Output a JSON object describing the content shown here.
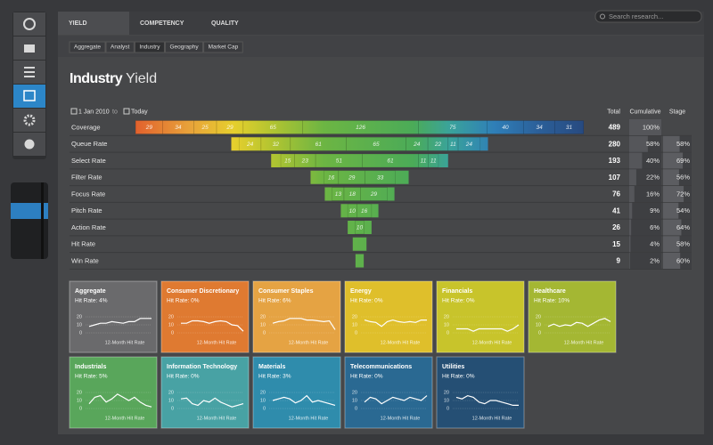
{
  "nav": {
    "tabs": [
      "YIELD",
      "COMPETENCY",
      "QUALITY"
    ],
    "active_tab": 0,
    "subtabs": [
      "Aggregate",
      "Analyst",
      "Industry",
      "Geography",
      "Market Cap"
    ],
    "active_subtab": 2,
    "search_placeholder": "Search research..."
  },
  "title": {
    "bold": "Industry",
    "light": "Yield"
  },
  "dates": {
    "from": "1 Jan 2010",
    "to_word": "to",
    "to": "Today"
  },
  "columns": [
    "Total",
    "Cumulative",
    "Stage"
  ],
  "funnel_rows": [
    {
      "label": "Coverage",
      "segments": [
        29,
        34,
        25,
        29,
        65,
        126,
        75,
        40,
        34,
        31
      ],
      "total": 489,
      "cumulative": {
        "value": 100,
        "label": "100%"
      },
      "stage": null
    },
    {
      "label": "Queue Rate",
      "segments": [
        24,
        32,
        61,
        65,
        24,
        22,
        11,
        24
      ],
      "total": 280,
      "cumulative": {
        "value": 58,
        "label": "58%"
      },
      "stage": {
        "value": 58,
        "label": "58%"
      }
    },
    {
      "label": "Select Rate",
      "segments": [
        15,
        23,
        51,
        61,
        11,
        11
      ],
      "total": 193,
      "cumulative": {
        "value": 40,
        "label": "40%"
      },
      "stage": {
        "value": 69,
        "label": "69%"
      }
    },
    {
      "label": "Filter Rate",
      "segments": [
        16,
        29,
        33
      ],
      "total": 107,
      "cumulative": {
        "value": 22,
        "label": "22%"
      },
      "stage": {
        "value": 56,
        "label": "56%"
      }
    },
    {
      "label": "Focus Rate",
      "segments": [
        13,
        18,
        29
      ],
      "total": 76,
      "cumulative": {
        "value": 16,
        "label": "16%"
      },
      "stage": {
        "value": 72,
        "label": "72%"
      }
    },
    {
      "label": "Pitch Rate",
      "segments": [
        10,
        16
      ],
      "total": 41,
      "cumulative": {
        "value": 9,
        "label": "9%"
      },
      "stage": {
        "value": 54,
        "label": "54%"
      }
    },
    {
      "label": "Action Rate",
      "segments": [
        10
      ],
      "total": 26,
      "cumulative": {
        "value": 6,
        "label": "6%"
      },
      "stage": {
        "value": 64,
        "label": "64%"
      }
    },
    {
      "label": "Hit Rate",
      "segments": [],
      "total": 15,
      "cumulative": {
        "value": 4,
        "label": "4%"
      },
      "stage": {
        "value": 58,
        "label": "58%"
      }
    },
    {
      "label": "Win Rate",
      "segments": [],
      "total": 9,
      "cumulative": {
        "value": 2,
        "label": "2%"
      },
      "stage": {
        "value": 60,
        "label": "60%"
      }
    }
  ],
  "spark_ylim": [
    0,
    20
  ],
  "spark_yticks": [
    20,
    10,
    0
  ],
  "spark_caption": "12-Month Hit Rate",
  "tiles": [
    {
      "name": "Aggregate",
      "hit_rate": "Hit Rate: 4%",
      "color": "#6a6a6c",
      "values": [
        8,
        10,
        12,
        12,
        14,
        13,
        12,
        14,
        14,
        18,
        18,
        18
      ]
    },
    {
      "name": "Consumer Discretionary",
      "hit_rate": "Hit Rate: 0%",
      "color": "#df7a31",
      "values": [
        12,
        12,
        15,
        15,
        14,
        12,
        14,
        15,
        14,
        10,
        9,
        2
      ]
    },
    {
      "name": "Consumer Staples",
      "hit_rate": "Hit Rate: 6%",
      "color": "#e5a343",
      "values": [
        12,
        14,
        15,
        18,
        18,
        18,
        16,
        16,
        15,
        14,
        15,
        4
      ]
    },
    {
      "name": "Energy",
      "hit_rate": "Hit Rate: 0%",
      "color": "#dfbf2b",
      "values": [
        16,
        14,
        13,
        8,
        14,
        16,
        14,
        13,
        14,
        13,
        16,
        16
      ]
    },
    {
      "name": "Financials",
      "hit_rate": "Hit Rate: 0%",
      "color": "#c8c42b",
      "values": [
        5,
        5,
        5,
        2,
        5,
        5,
        5,
        5,
        5,
        2,
        5,
        10
      ]
    },
    {
      "name": "Healthcare",
      "hit_rate": "Hit Rate: 10%",
      "color": "#a4b733",
      "values": [
        8,
        11,
        8,
        10,
        9,
        13,
        12,
        8,
        12,
        16,
        18,
        14
      ]
    },
    {
      "name": "Industrials",
      "hit_rate": "Hit Rate: 5%",
      "color": "#59a65b",
      "values": [
        6,
        14,
        16,
        8,
        12,
        18,
        14,
        10,
        14,
        8,
        4,
        2
      ]
    },
    {
      "name": "Information Technology",
      "hit_rate": "Hit Rate: 0%",
      "color": "#48a2a4",
      "values": [
        12,
        13,
        6,
        4,
        10,
        8,
        13,
        8,
        5,
        2,
        4,
        6
      ]
    },
    {
      "name": "Materials",
      "hit_rate": "Hit Rate: 3%",
      "color": "#2f8cac",
      "values": [
        10,
        12,
        14,
        12,
        7,
        10,
        16,
        8,
        10,
        8,
        6,
        4
      ]
    },
    {
      "name": "Telecommunications",
      "hit_rate": "Hit Rate: 0%",
      "color": "#2a6992",
      "values": [
        8,
        14,
        12,
        6,
        10,
        14,
        12,
        10,
        14,
        12,
        10,
        16
      ]
    },
    {
      "name": "Utilities",
      "hit_rate": "Hit Rate: 0%",
      "color": "#254f74",
      "values": [
        14,
        12,
        16,
        14,
        8,
        6,
        10,
        10,
        8,
        6,
        4,
        4
      ]
    }
  ]
}
